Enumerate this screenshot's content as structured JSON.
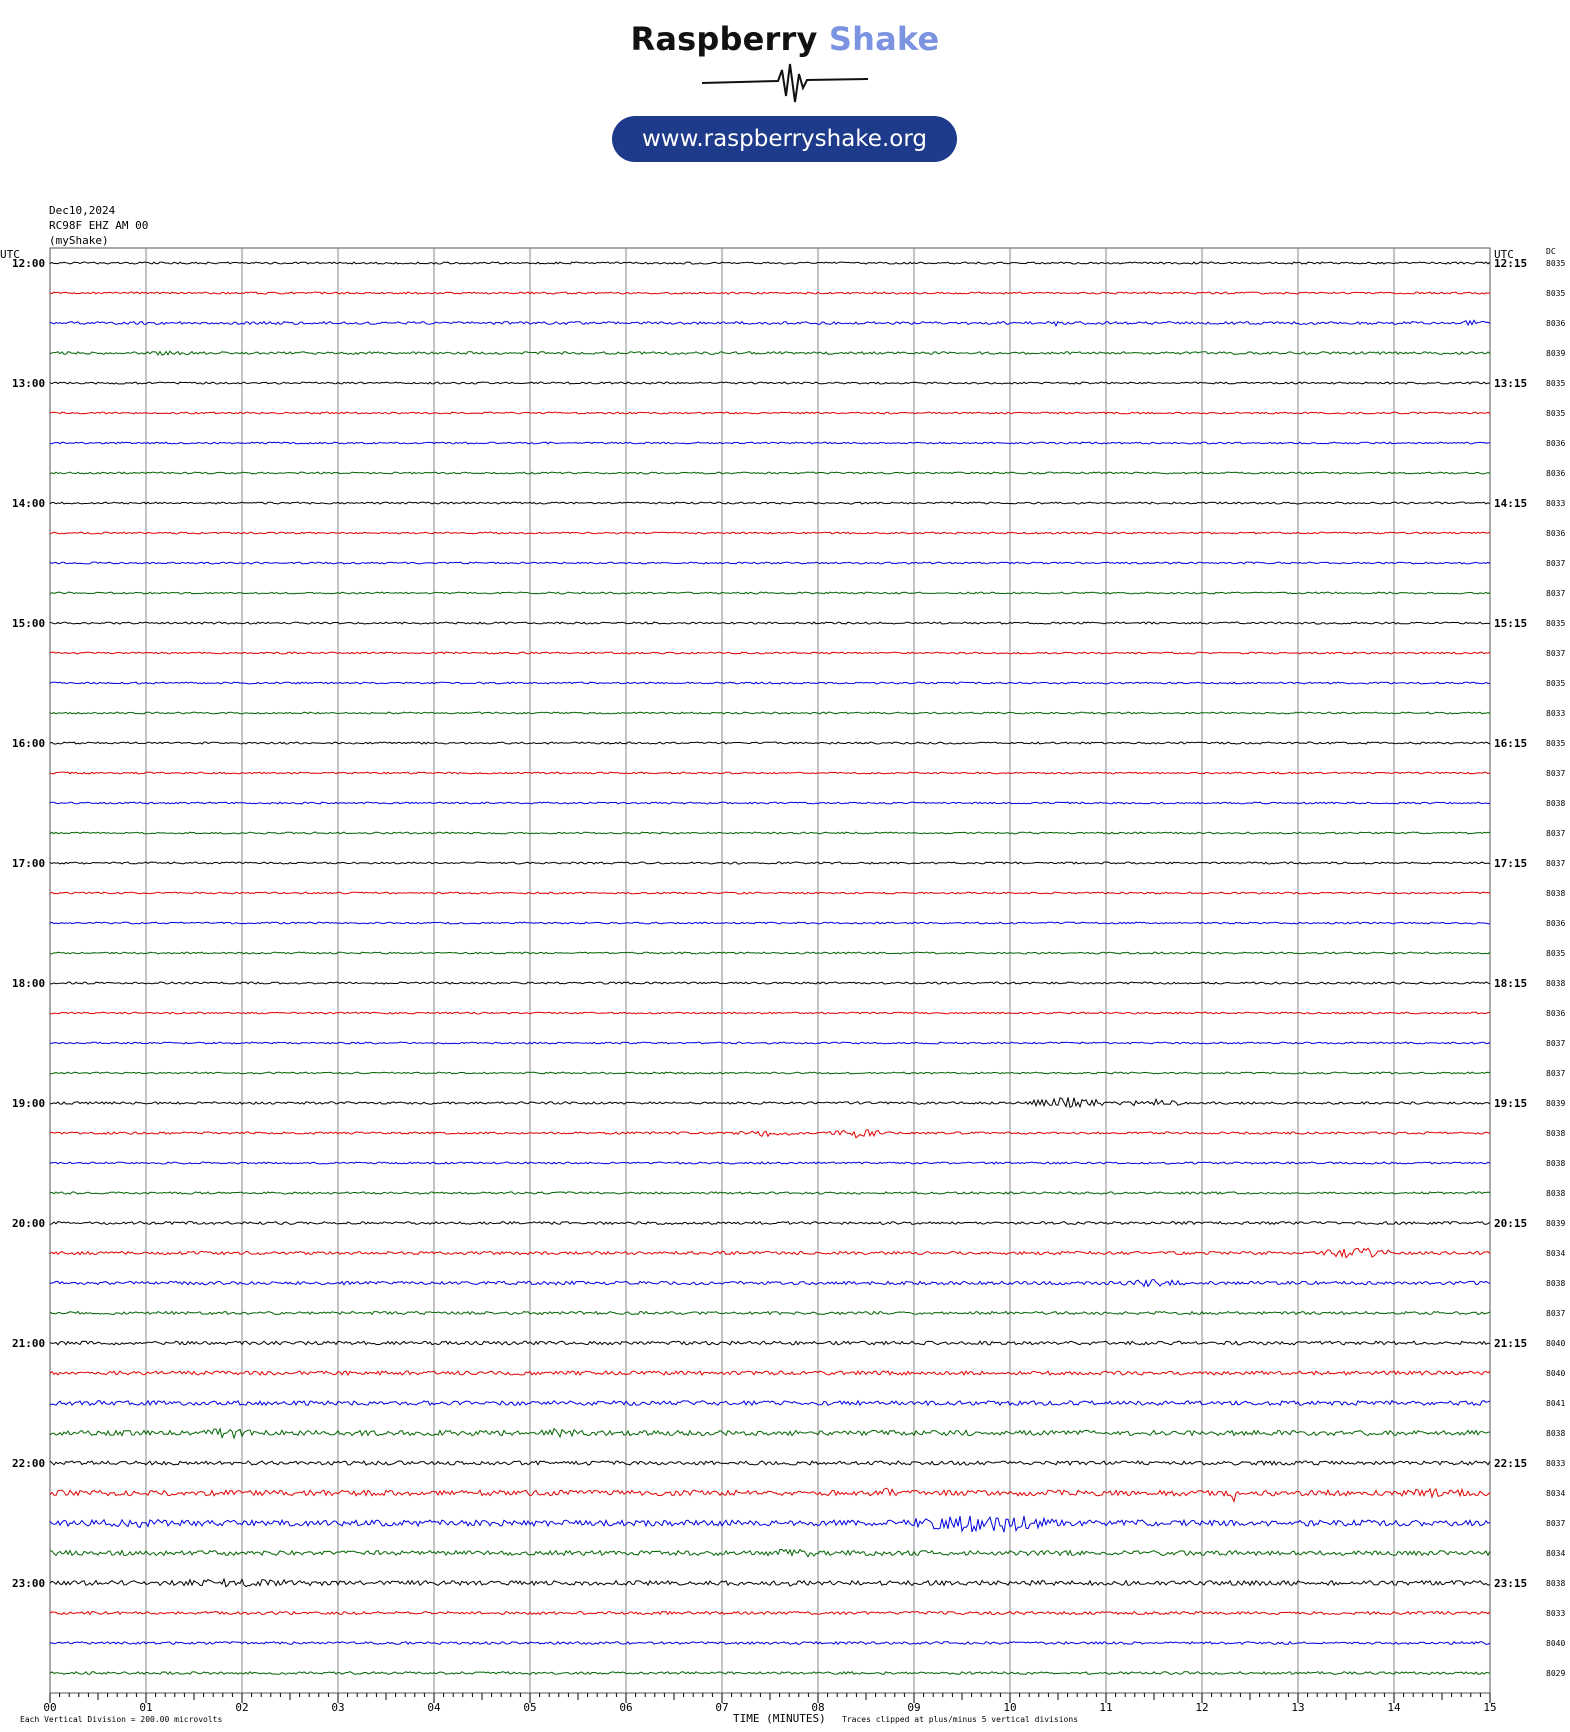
{
  "logo": {
    "title_part1": "Raspberry",
    "title_part2": "Shake",
    "url": "www.raspberryshake.org",
    "brand_colors": {
      "dark": "#111111",
      "accent": "#7b93e0",
      "pill": "#1e3a8a"
    }
  },
  "header": {
    "date": "Dec10,2024",
    "station": "RC98F EHZ AM 00",
    "network": "(myShake)"
  },
  "chart_data": {
    "type": "line",
    "subtype": "helicorder",
    "left_axis_label": "UTC",
    "right_axis_label": "UTC",
    "dc_label": "DC",
    "left_times": [
      "12:00",
      "13:00",
      "14:00",
      "15:00",
      "16:00",
      "17:00",
      "18:00",
      "19:00",
      "20:00",
      "21:00",
      "22:00",
      "23:00"
    ],
    "right_times": [
      "12:15",
      "13:15",
      "14:15",
      "15:15",
      "16:15",
      "17:15",
      "18:15",
      "19:15",
      "20:15",
      "21:15",
      "22:15",
      "23:15"
    ],
    "dc_values": [
      "8035",
      "8035",
      "8036",
      "8039",
      "8035",
      "8035",
      "8036",
      "8036",
      "8033",
      "8036",
      "8037",
      "8037",
      "8035",
      "8037",
      "8035",
      "8033",
      "8035",
      "8037",
      "8038",
      "8037",
      "8037",
      "8038",
      "8036",
      "8035",
      "8038",
      "8036",
      "8037",
      "8037",
      "8039",
      "8038",
      "8038",
      "8038",
      "8039",
      "8034",
      "8038",
      "8037",
      "8040",
      "8040",
      "8041",
      "8038",
      "8033",
      "8034",
      "8037",
      "8034",
      "8038",
      "8033",
      "8040",
      "8029"
    ],
    "x_ticks": [
      "00",
      "01",
      "02",
      "03",
      "04",
      "05",
      "06",
      "07",
      "08",
      "09",
      "10",
      "11",
      "12",
      "13",
      "14",
      "15"
    ],
    "xlim": [
      0,
      15
    ],
    "x_label": "TIME (MINUTES)",
    "footer_left": "Each Vertical Division =  200.00 microvolts",
    "footer_right": "Traces clipped at plus/minus 5 vertical divisions",
    "series_colors": [
      "#000000",
      "#e00000",
      "#0000e0",
      "#006400"
    ],
    "trace_count": 48,
    "trace_minutes": 15,
    "noise_level": [
      1,
      1,
      1.4,
      1.3,
      1,
      0.9,
      0.9,
      0.9,
      1,
      0.9,
      0.9,
      0.9,
      1,
      0.9,
      0.9,
      0.9,
      1,
      0.9,
      0.9,
      0.9,
      1,
      0.9,
      0.9,
      0.9,
      1,
      0.9,
      0.9,
      0.9,
      1.2,
      1.1,
      1,
      1.1,
      1.4,
      1.6,
      1.7,
      1.5,
      1.8,
      2,
      2.3,
      2.6,
      2,
      2.8,
      3,
      2.4,
      2.4,
      1.5,
      1.3,
      1.3
    ],
    "events": [
      {
        "trace": 2,
        "start_min": 10.4,
        "end_min": 10.55,
        "amplitude": 3
      },
      {
        "trace": 2,
        "start_min": 14.6,
        "end_min": 15,
        "amplitude": 3
      },
      {
        "trace": 3,
        "start_min": 0.7,
        "end_min": 1.8,
        "amplitude": 2.2
      },
      {
        "trace": 14,
        "start_min": 6.5,
        "end_min": 6.6,
        "amplitude": 2
      },
      {
        "trace": 28,
        "start_min": 10.2,
        "end_min": 11,
        "amplitude": 6
      },
      {
        "trace": 28,
        "start_min": 11.1,
        "end_min": 11.9,
        "amplitude": 4
      },
      {
        "trace": 29,
        "start_min": 7.1,
        "end_min": 7.8,
        "amplitude": 3.5
      },
      {
        "trace": 29,
        "start_min": 8.1,
        "end_min": 8.7,
        "amplitude": 5.5
      },
      {
        "trace": 33,
        "start_min": 13.2,
        "end_min": 14,
        "amplitude": 6
      },
      {
        "trace": 34,
        "start_min": 11.1,
        "end_min": 11.9,
        "amplitude": 4
      },
      {
        "trace": 39,
        "start_min": 1.6,
        "end_min": 2.1,
        "amplitude": 7
      },
      {
        "trace": 39,
        "start_min": 5,
        "end_min": 5.6,
        "amplitude": 5
      },
      {
        "trace": 41,
        "start_min": 8.6,
        "end_min": 8.85,
        "amplitude": 7
      },
      {
        "trace": 41,
        "start_min": 12.3,
        "end_min": 12.35,
        "amplitude": 12
      },
      {
        "trace": 41,
        "start_min": 13.9,
        "end_min": 15,
        "amplitude": 5
      },
      {
        "trace": 42,
        "start_min": 0.3,
        "end_min": 1.5,
        "amplitude": 5
      },
      {
        "trace": 42,
        "start_min": 9,
        "end_min": 10.5,
        "amplitude": 11
      },
      {
        "trace": 43,
        "start_min": 7.4,
        "end_min": 8.1,
        "amplitude": 5
      },
      {
        "trace": 44,
        "start_min": 0.9,
        "end_min": 3,
        "amplitude": 4.5
      },
      {
        "trace": 44,
        "start_min": 7.6,
        "end_min": 7.8,
        "amplitude": 4
      }
    ]
  }
}
